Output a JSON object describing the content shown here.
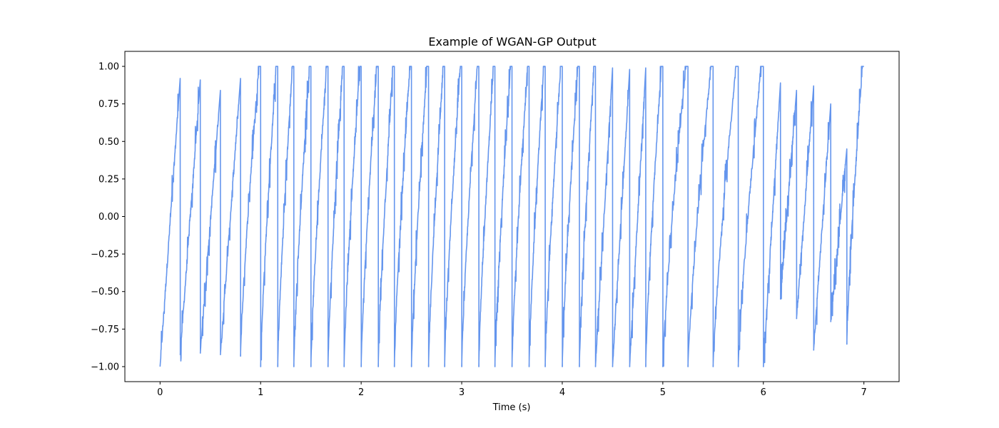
{
  "chart_data": {
    "type": "line",
    "title": "Example of WGAN-GP Output",
    "xlabel": "Time (s)",
    "ylabel": "",
    "xlim": [
      -0.35,
      7.35
    ],
    "ylim": [
      -1.1,
      1.1
    ],
    "xticks": [
      0,
      1,
      2,
      3,
      4,
      5,
      6,
      7
    ],
    "xtick_labels": [
      "0",
      "1",
      "2",
      "3",
      "4",
      "5",
      "6",
      "7"
    ],
    "yticks": [
      -1.0,
      -0.75,
      -0.5,
      -0.25,
      0.0,
      0.25,
      0.5,
      0.75,
      1.0
    ],
    "ytick_labels": [
      "−1.00",
      "−0.75",
      "−0.50",
      "−0.25",
      "0.00",
      "0.25",
      "0.50",
      "0.75",
      "1.00"
    ],
    "grid": false,
    "legend": "none",
    "series": [
      {
        "color": "#6495ED",
        "segments": [
          {
            "t0": 0.0,
            "t1": 0.2,
            "y0": -1.0,
            "y1": 0.92
          },
          {
            "t0": 0.2,
            "t1": 0.4,
            "y0": -0.92,
            "y1": 0.91
          },
          {
            "t0": 0.4,
            "t1": 0.6,
            "y0": -0.91,
            "y1": 0.84
          },
          {
            "t0": 0.6,
            "t1": 0.8,
            "y0": -0.92,
            "y1": 0.92
          },
          {
            "t0": 0.8,
            "t1": 1.0,
            "y0": -0.93,
            "y1": 1.0
          },
          {
            "t0": 1.0,
            "t1": 1.17,
            "y0": -1.0,
            "y1": 1.0
          },
          {
            "t0": 1.17,
            "t1": 1.33,
            "y0": -1.0,
            "y1": 1.0
          },
          {
            "t0": 1.33,
            "t1": 1.5,
            "y0": -1.0,
            "y1": 1.0
          },
          {
            "t0": 1.5,
            "t1": 1.67,
            "y0": -1.0,
            "y1": 1.0
          },
          {
            "t0": 1.67,
            "t1": 1.83,
            "y0": -1.0,
            "y1": 1.0
          },
          {
            "t0": 1.83,
            "t1": 2.0,
            "y0": -1.0,
            "y1": 1.0
          },
          {
            "t0": 2.0,
            "t1": 2.17,
            "y0": -1.0,
            "y1": 1.0
          },
          {
            "t0": 2.17,
            "t1": 2.33,
            "y0": -1.0,
            "y1": 1.0
          },
          {
            "t0": 2.33,
            "t1": 2.5,
            "y0": -1.0,
            "y1": 1.0
          },
          {
            "t0": 2.5,
            "t1": 2.67,
            "y0": -1.0,
            "y1": 1.0
          },
          {
            "t0": 2.67,
            "t1": 2.83,
            "y0": -1.0,
            "y1": 1.0
          },
          {
            "t0": 2.83,
            "t1": 3.0,
            "y0": -1.0,
            "y1": 1.0
          },
          {
            "t0": 3.0,
            "t1": 3.17,
            "y0": -1.0,
            "y1": 1.0
          },
          {
            "t0": 3.17,
            "t1": 3.33,
            "y0": -1.0,
            "y1": 1.0
          },
          {
            "t0": 3.33,
            "t1": 3.5,
            "y0": -1.0,
            "y1": 1.0
          },
          {
            "t0": 3.5,
            "t1": 3.67,
            "y0": -1.0,
            "y1": 1.0
          },
          {
            "t0": 3.67,
            "t1": 3.83,
            "y0": -1.0,
            "y1": 1.0
          },
          {
            "t0": 3.83,
            "t1": 4.0,
            "y0": -1.0,
            "y1": 1.0
          },
          {
            "t0": 4.0,
            "t1": 4.17,
            "y0": -1.0,
            "y1": 1.0
          },
          {
            "t0": 4.17,
            "t1": 4.33,
            "y0": -1.0,
            "y1": 1.0
          },
          {
            "t0": 4.33,
            "t1": 4.5,
            "y0": -1.0,
            "y1": 0.99
          },
          {
            "t0": 4.5,
            "t1": 4.67,
            "y0": -1.0,
            "y1": 0.98
          },
          {
            "t0": 4.67,
            "t1": 4.83,
            "y0": -1.0,
            "y1": 0.99
          },
          {
            "t0": 4.83,
            "t1": 5.0,
            "y0": -1.0,
            "y1": 1.0
          },
          {
            "t0": 5.0,
            "t1": 5.25,
            "y0": -1.0,
            "y1": 1.0
          },
          {
            "t0": 5.25,
            "t1": 5.5,
            "y0": -1.0,
            "y1": 1.0
          },
          {
            "t0": 5.5,
            "t1": 5.75,
            "y0": -1.0,
            "y1": 1.0
          },
          {
            "t0": 5.75,
            "t1": 6.0,
            "y0": -1.0,
            "y1": 1.0
          },
          {
            "t0": 6.0,
            "t1": 6.17,
            "y0": -1.0,
            "y1": 0.89
          },
          {
            "t0": 6.17,
            "t1": 6.33,
            "y0": -0.55,
            "y1": 0.84
          },
          {
            "t0": 6.33,
            "t1": 6.5,
            "y0": -0.68,
            "y1": 0.87
          },
          {
            "t0": 6.5,
            "t1": 6.67,
            "y0": -0.89,
            "y1": 0.75
          },
          {
            "t0": 6.67,
            "t1": 6.83,
            "y0": -0.7,
            "y1": 0.45
          },
          {
            "t0": 6.83,
            "t1": 7.0,
            "y0": -0.85,
            "y1": 1.0
          }
        ]
      }
    ]
  }
}
